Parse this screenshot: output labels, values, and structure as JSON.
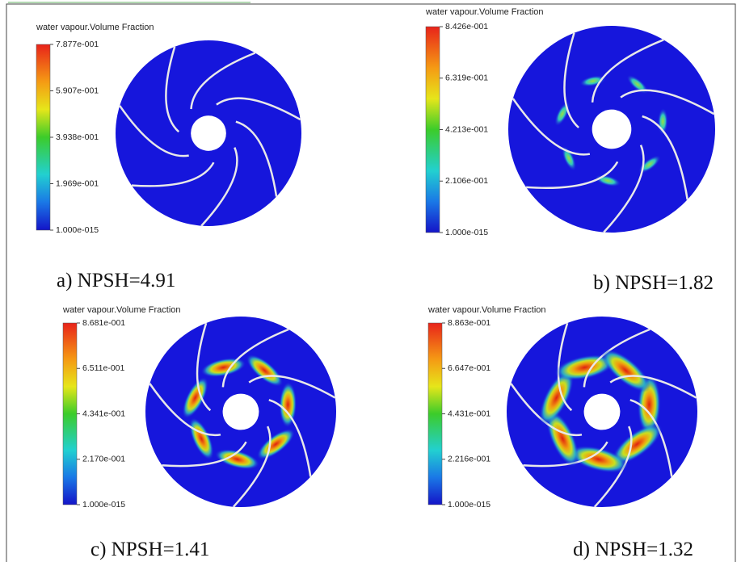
{
  "panels": [
    {
      "legend_title": "water vapour.Volume Fraction",
      "ticks": [
        "7.877e-001",
        "5.907e-001",
        "3.938e-001",
        "1.969e-001",
        "1.000e-015"
      ],
      "caption": "a) NPSH=4.91"
    },
    {
      "legend_title": "water vapour.Volume Fraction",
      "ticks": [
        "8.426e-001",
        "6.319e-001",
        "4.213e-001",
        "2.106e-001",
        "1.000e-015"
      ],
      "caption": "b) NPSH=1.82"
    },
    {
      "legend_title": "water vapour.Volume Fraction",
      "ticks": [
        "8.681e-001",
        "6.511e-001",
        "4.341e-001",
        "2.170e-001",
        "1.000e-015"
      ],
      "caption": "c) NPSH=1.41"
    },
    {
      "legend_title": "water vapour.Volume Fraction",
      "ticks": [
        "8.863e-001",
        "6.647e-001",
        "4.431e-001",
        "2.216e-001",
        "1.000e-015"
      ],
      "caption": "d) NPSH=1.32"
    }
  ]
}
